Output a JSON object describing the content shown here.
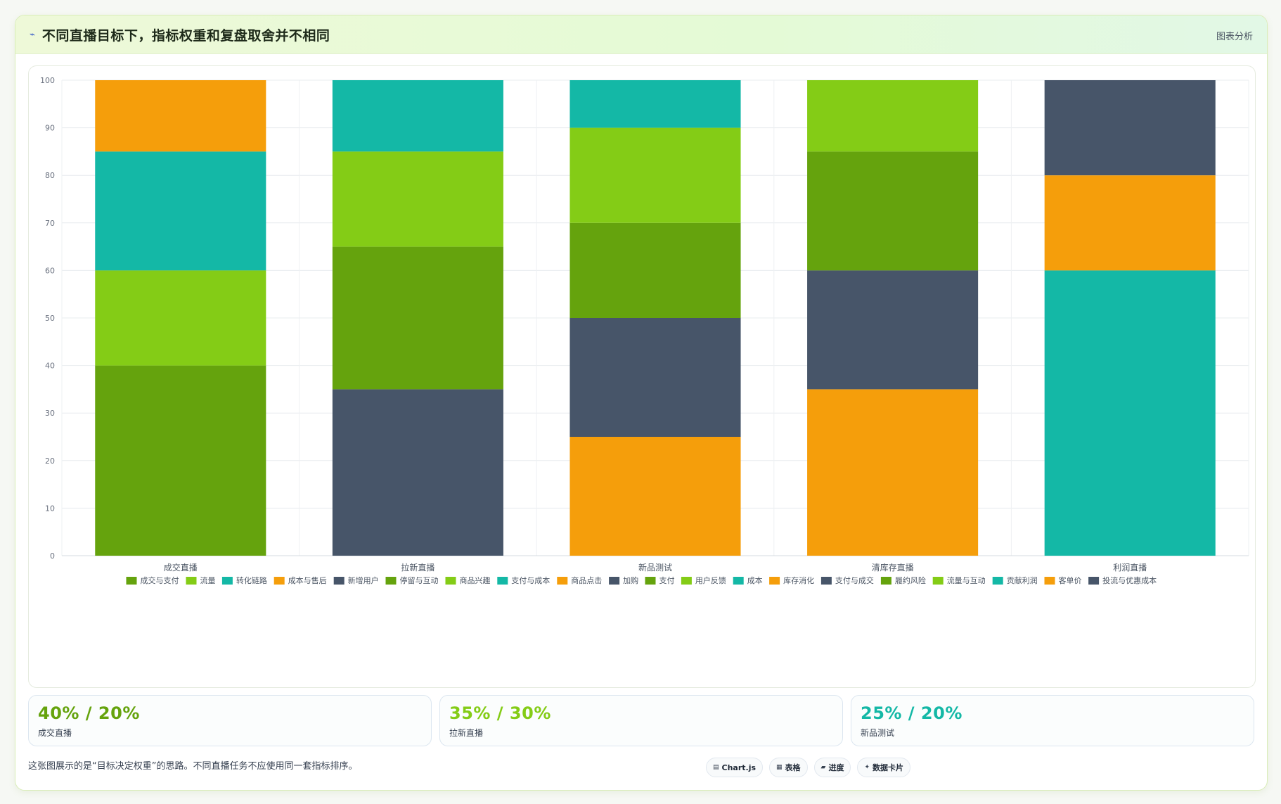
{
  "header": {
    "title": "不同直播目标下，指标权重和复盘取舍并不相同",
    "link_label": "图表分析",
    "icon": "trend-line-icon"
  },
  "colors": {
    "dark_green": "#65a30d",
    "lime": "#84cc16",
    "teal": "#14b8a6",
    "orange": "#f59e0b",
    "slate": "#475569"
  },
  "chart_data": {
    "type": "bar",
    "stacked": true,
    "categories": [
      "成交直播",
      "拉新直播",
      "新品测试",
      "清库存直播",
      "利润直播"
    ],
    "ylim": [
      0,
      100
    ],
    "yticks": [
      0,
      10,
      20,
      30,
      40,
      50,
      60,
      70,
      80,
      90,
      100
    ],
    "grid": true,
    "legend_position": "bottom",
    "series": [
      {
        "name": "成交与支付",
        "color": "#65a30d",
        "values": [
          40,
          0,
          0,
          0,
          0
        ]
      },
      {
        "name": "流量",
        "color": "#84cc16",
        "values": [
          20,
          0,
          0,
          0,
          0
        ]
      },
      {
        "name": "转化链路",
        "color": "#14b8a6",
        "values": [
          25,
          0,
          0,
          0,
          0
        ]
      },
      {
        "name": "成本与售后",
        "color": "#f59e0b",
        "values": [
          15,
          0,
          0,
          0,
          0
        ]
      },
      {
        "name": "新增用户",
        "color": "#475569",
        "values": [
          0,
          35,
          0,
          0,
          0
        ]
      },
      {
        "name": "停留与互动",
        "color": "#65a30d",
        "values": [
          0,
          30,
          0,
          0,
          0
        ]
      },
      {
        "name": "商品兴趣",
        "color": "#84cc16",
        "values": [
          0,
          20,
          0,
          0,
          0
        ]
      },
      {
        "name": "支付与成本",
        "color": "#14b8a6",
        "values": [
          0,
          15,
          0,
          0,
          0
        ]
      },
      {
        "name": "商品点击",
        "color": "#f59e0b",
        "values": [
          0,
          0,
          25,
          0,
          0
        ]
      },
      {
        "name": "加购",
        "color": "#475569",
        "values": [
          0,
          0,
          25,
          0,
          0
        ]
      },
      {
        "name": "支付",
        "color": "#65a30d",
        "values": [
          0,
          0,
          20,
          0,
          0
        ]
      },
      {
        "name": "用户反馈",
        "color": "#84cc16",
        "values": [
          0,
          0,
          20,
          0,
          0
        ]
      },
      {
        "name": "成本",
        "color": "#14b8a6",
        "values": [
          0,
          0,
          10,
          0,
          0
        ]
      },
      {
        "name": "库存消化",
        "color": "#f59e0b",
        "values": [
          0,
          0,
          0,
          35,
          0
        ]
      },
      {
        "name": "支付与成交",
        "color": "#475569",
        "values": [
          0,
          0,
          0,
          25,
          0
        ]
      },
      {
        "name": "履约风险",
        "color": "#65a30d",
        "values": [
          0,
          0,
          0,
          25,
          0
        ]
      },
      {
        "name": "流量与互动",
        "color": "#84cc16",
        "values": [
          0,
          0,
          0,
          15,
          0
        ]
      },
      {
        "name": "贡献利润",
        "color": "#14b8a6",
        "values": [
          0,
          0,
          0,
          0,
          60
        ]
      },
      {
        "name": "客单价",
        "color": "#f59e0b",
        "values": [
          0,
          0,
          0,
          0,
          20
        ]
      },
      {
        "name": "投流与优惠成本",
        "color": "#475569",
        "values": [
          0,
          0,
          0,
          0,
          20
        ]
      }
    ]
  },
  "kpis": [
    {
      "value": "40% / 20%",
      "label": "成交直播",
      "color": "#65a30d"
    },
    {
      "value": "35% / 30%",
      "label": "拉新直播",
      "color": "#84cc16"
    },
    {
      "value": "25% / 20%",
      "label": "新品测试",
      "color": "#14b8a6"
    }
  ],
  "footnote": "这张图展示的是“目标决定权重”的思路。不同直播任务不应使用同一套指标排序。",
  "tags": [
    {
      "icon": "chart-icon",
      "glyph": "▤",
      "label": "Chart.js"
    },
    {
      "icon": "table-icon",
      "glyph": "▦",
      "label": "表格"
    },
    {
      "icon": "progress-icon",
      "glyph": "▰",
      "label": "进度"
    },
    {
      "icon": "sparkle-icon",
      "glyph": "✦",
      "label": "数据卡片"
    }
  ]
}
